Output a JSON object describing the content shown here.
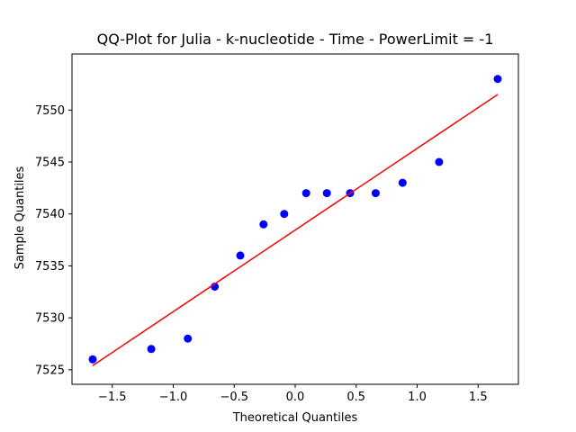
{
  "chart_data": {
    "type": "scatter",
    "title": "QQ-Plot for Julia - k-nucleotide - Time - PowerLimit = -1",
    "xlabel": "Theoretical Quantiles",
    "ylabel": "Sample Quantiles",
    "xlim": [
      -1.83,
      1.83
    ],
    "ylim": [
      7523.6,
      7555.4
    ],
    "xticks": [
      -1.5,
      -1.0,
      -0.5,
      0.0,
      0.5,
      1.0,
      1.5
    ],
    "xtick_labels": [
      "−1.5",
      "−1.0",
      "−0.5",
      "0.0",
      "0.5",
      "1.0",
      "1.5"
    ],
    "yticks": [
      7525,
      7530,
      7535,
      7540,
      7545,
      7550
    ],
    "ytick_labels": [
      "7525",
      "7530",
      "7535",
      "7540",
      "7545",
      "7550"
    ],
    "grid": false,
    "series": [
      {
        "kind": "points",
        "color": "#0000ff",
        "x": [
          -1.66,
          -1.18,
          -0.88,
          -0.66,
          -0.45,
          -0.26,
          -0.09,
          0.09,
          0.26,
          0.45,
          0.66,
          0.88,
          1.18,
          1.66
        ],
        "y": [
          7526,
          7527,
          7528,
          7533,
          7536,
          7539,
          7540,
          7542,
          7542,
          7542,
          7542,
          7543,
          7545,
          7553
        ]
      },
      {
        "kind": "fit-line",
        "color": "#ff0000",
        "x": [
          -1.66,
          1.66
        ],
        "y": [
          7525.4,
          7551.5
        ]
      }
    ]
  }
}
